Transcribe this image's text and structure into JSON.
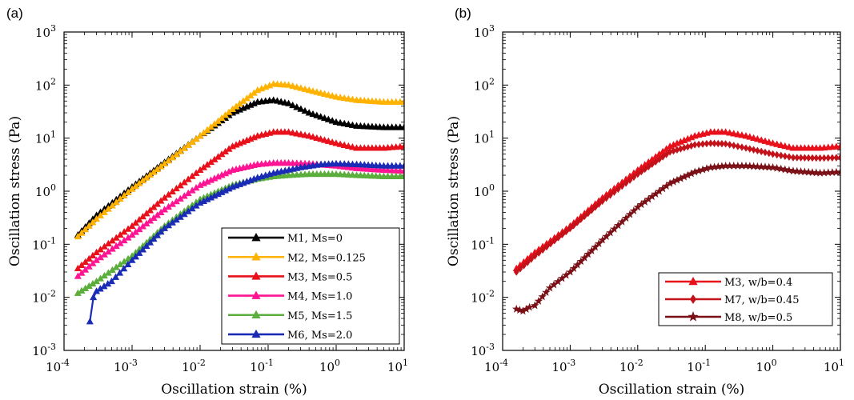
{
  "chart_data": [
    {
      "type": "line",
      "panel_label": "(a)",
      "xlabel": "Oscillation strain (%)",
      "ylabel": "Oscillation stress (Pa)",
      "xscale": "log",
      "yscale": "log",
      "xlim": [
        0.0001,
        10
      ],
      "ylim": [
        0.001,
        1000
      ],
      "x_ticks": [
        "4",
        "3",
        "2",
        "1",
        "0",
        "1"
      ],
      "x_tick_signs": [
        "-",
        "-",
        "-",
        "-",
        "",
        ""
      ],
      "y_ticks": [
        "-3",
        "-2",
        "-1",
        "0",
        "1",
        "2",
        "3"
      ],
      "legend_position": "bottom-right",
      "series": [
        {
          "name": "M1, Ms=0",
          "color": "#000000",
          "marker": "triangle",
          "x": [
            0.00016,
            0.0003,
            0.001,
            0.003,
            0.01,
            0.03,
            0.07,
            0.12,
            0.2,
            0.4,
            1,
            2,
            5,
            10
          ],
          "y": [
            0.15,
            0.35,
            1.2,
            3.5,
            11,
            30,
            48,
            52,
            45,
            30,
            20,
            17,
            16,
            16
          ]
        },
        {
          "name": "M2, Ms=0.125",
          "color": "#FFB300",
          "marker": "triangle",
          "x": [
            0.00016,
            0.0003,
            0.001,
            0.003,
            0.01,
            0.03,
            0.07,
            0.12,
            0.2,
            0.4,
            1,
            2,
            5,
            10
          ],
          "y": [
            0.14,
            0.3,
            1.1,
            3.3,
            11,
            35,
            80,
            105,
            100,
            80,
            60,
            52,
            48,
            48
          ]
        },
        {
          "name": "M3, Ms=0.5",
          "color": "#E8101A",
          "marker": "triangle",
          "x": [
            0.00016,
            0.0003,
            0.001,
            0.003,
            0.01,
            0.03,
            0.07,
            0.12,
            0.2,
            0.4,
            1,
            2,
            5,
            10
          ],
          "y": [
            0.035,
            0.07,
            0.22,
            0.75,
            2.5,
            7,
            11,
            13,
            13,
            11,
            8,
            6.5,
            6.5,
            7
          ]
        },
        {
          "name": "M4, Ms=1.0",
          "color": "#FF1493",
          "marker": "triangle",
          "x": [
            0.00016,
            0.0003,
            0.001,
            0.003,
            0.01,
            0.03,
            0.07,
            0.12,
            0.2,
            0.4,
            1,
            2,
            5,
            10
          ],
          "y": [
            0.025,
            0.05,
            0.15,
            0.45,
            1.3,
            2.5,
            3.2,
            3.4,
            3.4,
            3.3,
            3.0,
            2.7,
            2.5,
            2.4
          ]
        },
        {
          "name": "M5, Ms=1.5",
          "color": "#5BAE3C",
          "marker": "triangle",
          "x": [
            0.00016,
            0.0003,
            0.001,
            0.003,
            0.01,
            0.03,
            0.07,
            0.12,
            0.2,
            0.4,
            1,
            2,
            5,
            10
          ],
          "y": [
            0.012,
            0.02,
            0.06,
            0.22,
            0.7,
            1.3,
            1.7,
            1.9,
            2.0,
            2.1,
            2.1,
            2.0,
            1.9,
            1.9
          ]
        },
        {
          "name": "M6, Ms=2.0",
          "color": "#1A2BB5",
          "marker": "triangle",
          "x": [
            0.00024,
            0.00027,
            0.0003,
            0.0005,
            0.001,
            0.003,
            0.01,
            0.03,
            0.07,
            0.12,
            0.3,
            0.6,
            1,
            2,
            5,
            10
          ],
          "y": [
            0.0035,
            0.01,
            0.013,
            0.02,
            0.05,
            0.2,
            0.6,
            1.2,
            1.8,
            2.2,
            2.8,
            3.2,
            3.3,
            3.2,
            3.0,
            3.0
          ]
        }
      ]
    },
    {
      "type": "line",
      "panel_label": "(b)",
      "xlabel": "Oscillation strain (%)",
      "ylabel": "Oscillation stress (Pa)",
      "xscale": "log",
      "yscale": "log",
      "xlim": [
        0.0001,
        10
      ],
      "ylim": [
        0.001,
        1000
      ],
      "x_ticks": [
        "4",
        "3",
        "2",
        "1",
        "0",
        "1"
      ],
      "x_tick_signs": [
        "-",
        "-",
        "-",
        "-",
        "",
        ""
      ],
      "y_ticks": [
        "-3",
        "-2",
        "-1",
        "0",
        "1",
        "2",
        "3"
      ],
      "legend_position": "bottom-right",
      "series": [
        {
          "name": "M3, w/b=0.4",
          "color": "#E8101A",
          "marker": "triangle",
          "x": [
            0.00016,
            0.0003,
            0.001,
            0.003,
            0.01,
            0.03,
            0.07,
            0.12,
            0.2,
            0.4,
            1,
            2,
            5,
            10
          ],
          "y": [
            0.035,
            0.07,
            0.22,
            0.75,
            2.5,
            7,
            11,
            13,
            13,
            11,
            8,
            6.5,
            6.5,
            7
          ]
        },
        {
          "name": "M7, w/b=0.45",
          "color": "#C4121A",
          "marker": "diamond",
          "x": [
            0.00016,
            0.0003,
            0.001,
            0.003,
            0.01,
            0.03,
            0.07,
            0.12,
            0.2,
            0.4,
            1,
            2,
            5,
            10
          ],
          "y": [
            0.03,
            0.06,
            0.2,
            0.65,
            2.1,
            5.5,
            7.5,
            8,
            7.8,
            6.5,
            5,
            4.3,
            4.2,
            4.3
          ]
        },
        {
          "name": "M8, w/b=0.5",
          "color": "#7A1016",
          "marker": "star",
          "x": [
            0.00016,
            0.0002,
            0.00025,
            0.0003,
            0.0005,
            0.001,
            0.003,
            0.01,
            0.03,
            0.07,
            0.12,
            0.2,
            0.4,
            1,
            2,
            5,
            10
          ],
          "y": [
            0.006,
            0.0055,
            0.0065,
            0.007,
            0.015,
            0.03,
            0.12,
            0.5,
            1.4,
            2.3,
            2.8,
            3.0,
            3.0,
            2.8,
            2.4,
            2.2,
            2.3
          ]
        }
      ]
    }
  ]
}
